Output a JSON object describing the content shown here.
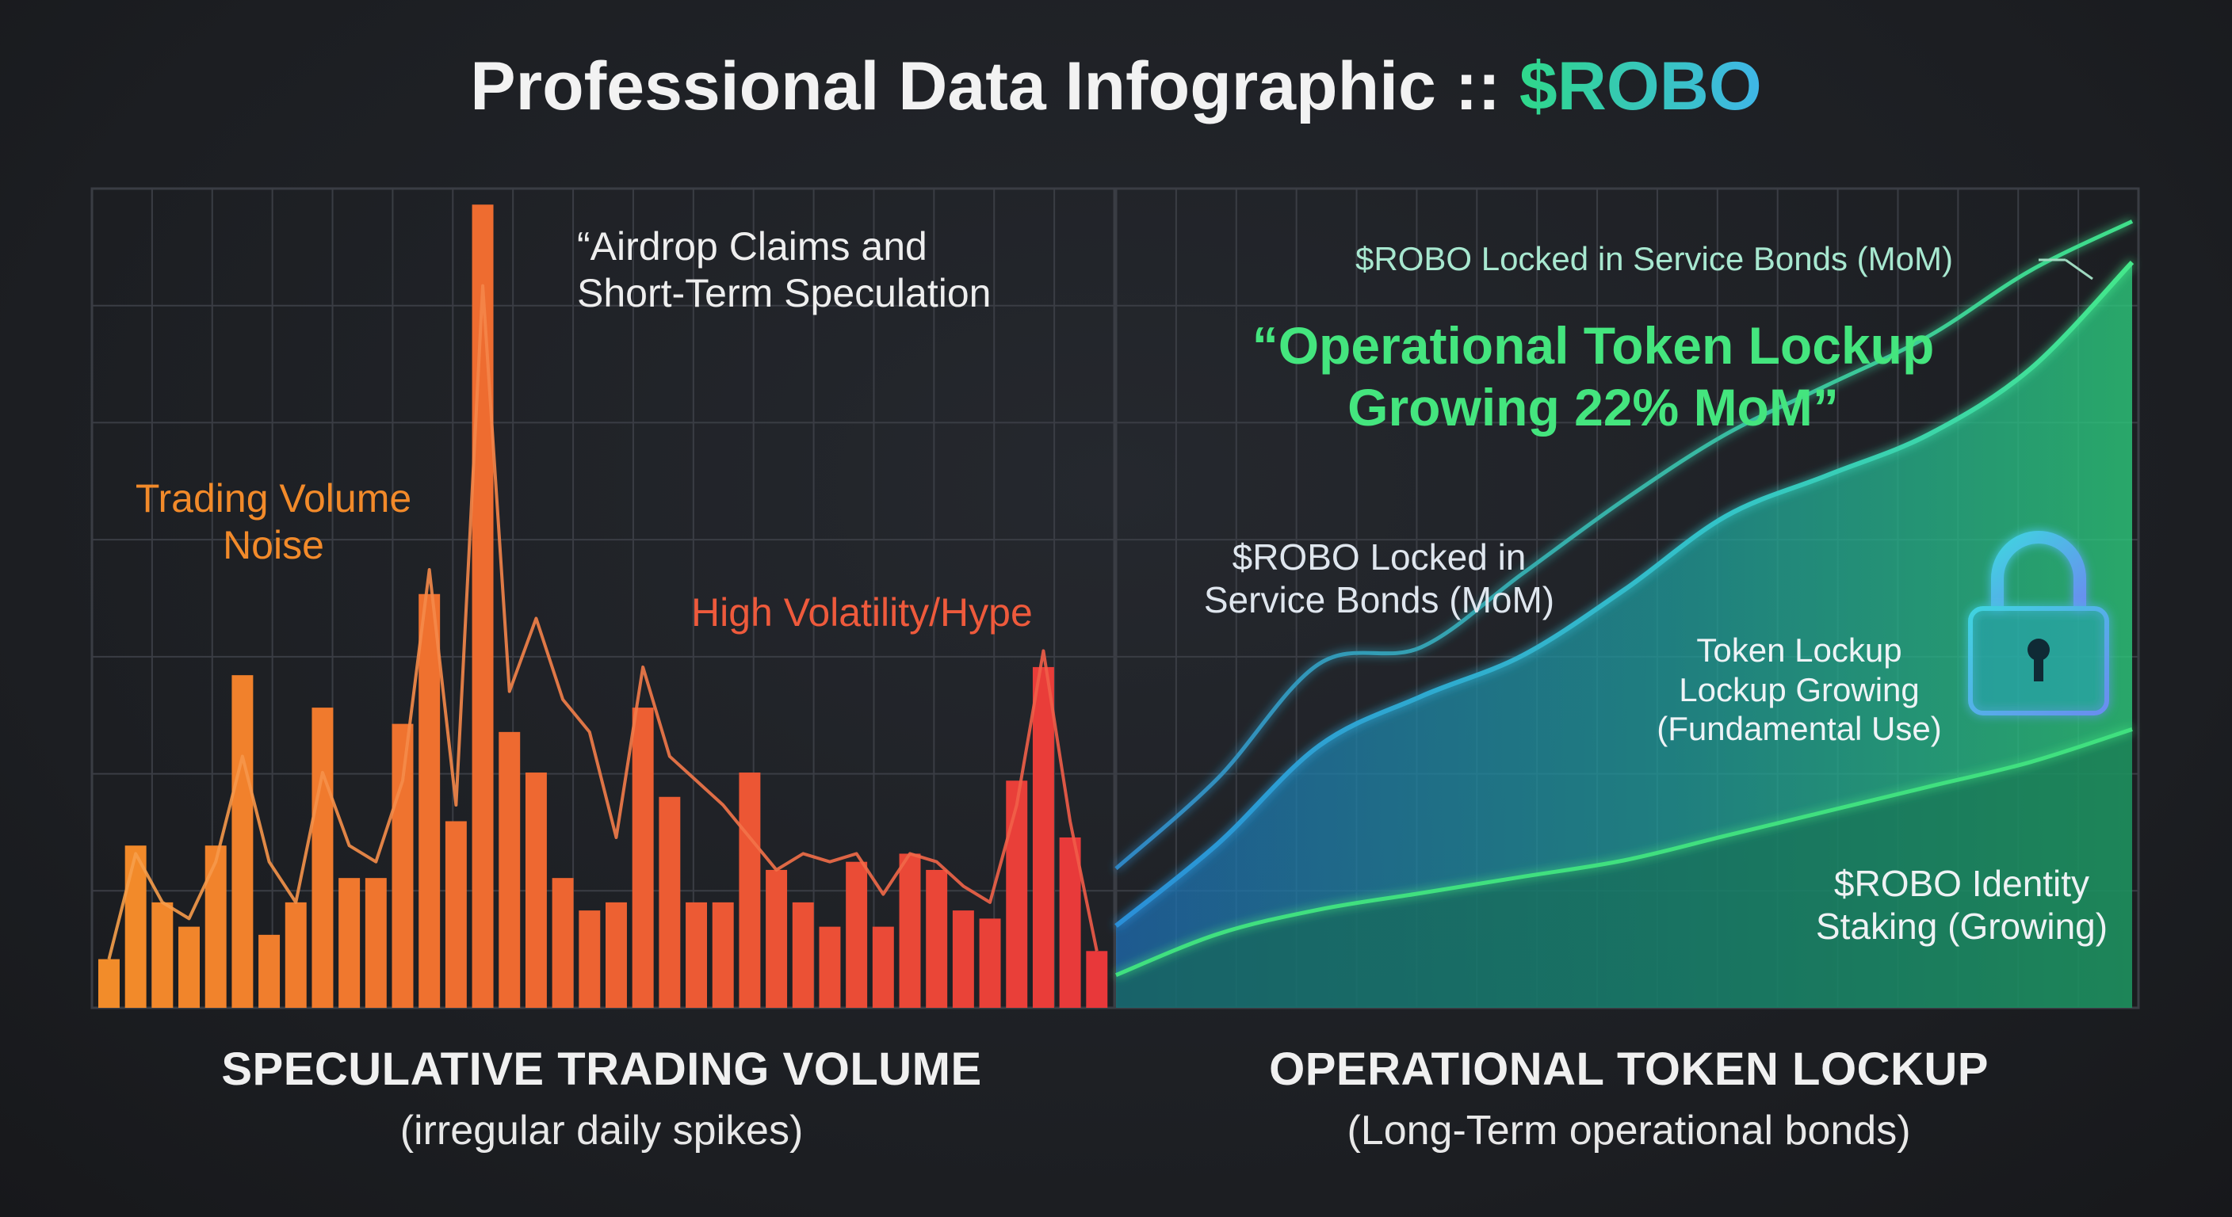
{
  "title": {
    "prefix": "Professional Data Infographic :: ",
    "token": "$ROBO"
  },
  "colors": {
    "orange": "#f28a2a",
    "red": "#e94a35",
    "green": "#3ee07f",
    "cyan": "#37b9e8",
    "grid": "#3a3d44"
  },
  "chart_data": [
    {
      "type": "bar",
      "title": "SPECULATIVE TRADING VOLUME",
      "subtitle": "(irregular daily spikes)",
      "ylim": [
        0,
        100
      ],
      "values": [
        6,
        20,
        13,
        10,
        20,
        41,
        9,
        13,
        37,
        16,
        16,
        35,
        51,
        23,
        99,
        34,
        29,
        16,
        12,
        13,
        37,
        26,
        13,
        13,
        29,
        17,
        13,
        10,
        18,
        10,
        19,
        17,
        12,
        11,
        28,
        42,
        21,
        7
      ],
      "line": [
        6,
        19,
        13,
        11,
        18,
        31,
        18,
        13,
        29,
        20,
        18,
        28,
        54,
        25,
        89,
        39,
        48,
        38,
        34,
        21,
        42,
        31,
        28,
        25,
        21,
        17,
        19,
        18,
        19,
        14,
        19,
        18,
        15,
        13,
        25,
        44,
        23,
        7
      ],
      "annotations": {
        "noise": [
          "Trading Volume",
          "Noise"
        ],
        "airdrop": [
          "“Airdrop Claims and",
          "Short-Term Speculation"
        ],
        "hype": "High Volatility/Hype"
      }
    },
    {
      "type": "area",
      "title": "OPERATIONAL TOKEN LOCKUP",
      "subtitle": "(Long-Term operational bonds)",
      "ylim": [
        0,
        100
      ],
      "x": [
        0,
        10,
        20,
        30,
        40,
        50,
        60,
        70,
        80,
        90,
        100
      ],
      "series": [
        {
          "name": "$ROBO Locked in Service Bonds (MoM)",
          "values": [
            17,
            28,
            42,
            44,
            53,
            62,
            70,
            76,
            82,
            90,
            96
          ]
        },
        {
          "name": "Token Lockup Growing (Fundamental Use)",
          "values": [
            10,
            20,
            32,
            38,
            43,
            51,
            60,
            65,
            70,
            78,
            91
          ]
        },
        {
          "name": "$ROBO Identity Staking (Growing)",
          "values": [
            4,
            9,
            12,
            14,
            16,
            18,
            21,
            24,
            27,
            30,
            34
          ]
        }
      ],
      "annotations": {
        "headline": [
          "“Operational Token Lockup",
          "Growing 22% MoM”"
        ],
        "top_label": "$ROBO Locked in Service Bonds (MoM)",
        "mid_label": [
          "$ROBO Locked in",
          "Service Bonds (MoM)"
        ],
        "lock_label": [
          "Token Lockup",
          "Lockup Growing",
          "(Fundamental Use)"
        ],
        "identity_label": [
          "$ROBO Identity",
          "Staking (Growing)"
        ]
      }
    }
  ]
}
